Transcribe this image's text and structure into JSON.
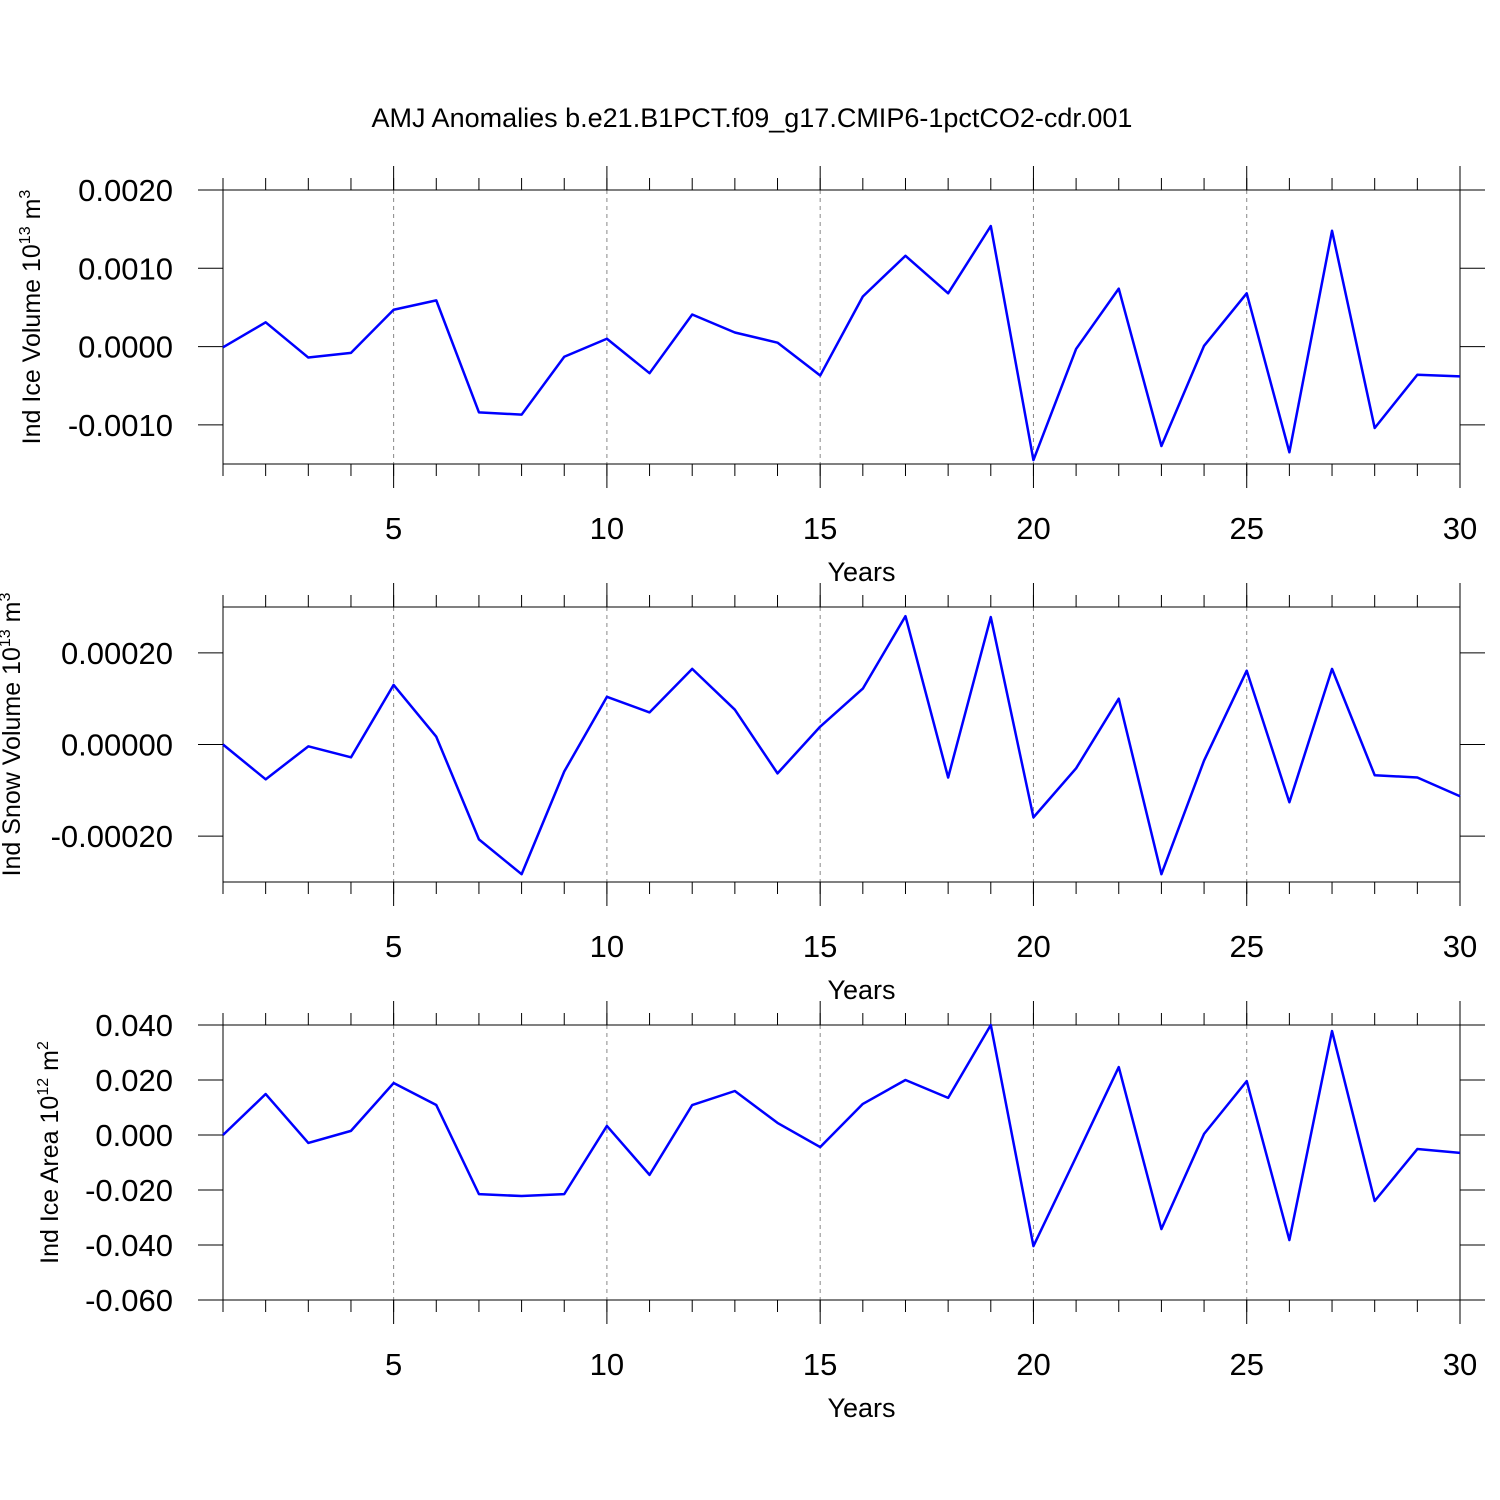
{
  "chart_data": [
    {
      "type": "line",
      "title": "AMJ Anomalies b.e21.B1PCT.f09_g17.CMIP6-1pctCO2-cdr.001",
      "ylabel": {
        "text": "Ind Ice Volume 10",
        "sup": "13",
        "unit": "m",
        "unit_sup": "3"
      },
      "xlabel": "Years",
      "color": "#0000ff",
      "grid": true,
      "x": [
        1,
        2,
        3,
        4,
        5,
        6,
        7,
        8,
        9,
        10,
        11,
        12,
        13,
        14,
        15,
        16,
        17,
        18,
        19,
        20,
        21,
        22,
        23,
        24,
        25,
        26,
        27,
        28,
        29,
        30
      ],
      "values": [
        -1e-05,
        0.00031,
        -0.00014,
        -8e-05,
        0.00047,
        0.00059,
        -0.00084,
        -0.00087,
        -0.00013,
        0.0001,
        -0.00034,
        0.00041,
        0.00018,
        5e-05,
        -0.00037,
        0.00064,
        0.00116,
        0.00068,
        0.00154,
        -0.00145,
        -3e-05,
        0.00074,
        -0.00127,
        1e-05,
        0.00068,
        -0.00135,
        0.00148,
        -0.00104,
        -0.00036,
        -0.00038
      ],
      "xlim": [
        1,
        30
      ],
      "xticks": [
        5,
        10,
        15,
        20,
        25,
        30
      ],
      "ylim": [
        -0.0015,
        0.002
      ],
      "yticks": [
        {
          "value": 0.002,
          "label": "0.0020"
        },
        {
          "value": 0.001,
          "label": "0.0010"
        },
        {
          "value": 0,
          "label": "0.0000"
        },
        {
          "value": -0.001,
          "label": "-0.0010"
        }
      ]
    },
    {
      "type": "line",
      "ylabel": {
        "text": "Ind Snow Volume 10",
        "sup": "13",
        "unit": "m",
        "unit_sup": "3"
      },
      "xlabel": "Years",
      "color": "#0000ff",
      "grid": true,
      "x": [
        1,
        2,
        3,
        4,
        5,
        6,
        7,
        8,
        9,
        10,
        11,
        12,
        13,
        14,
        15,
        16,
        17,
        18,
        19,
        20,
        21,
        22,
        23,
        24,
        25,
        26,
        27,
        28,
        29,
        30
      ],
      "values": [
        0,
        -7.6e-05,
        -4e-06,
        -2.8e-05,
        0.00013,
        1.7e-05,
        -0.000207,
        -0.000283,
        -5.9e-05,
        0.000104,
        7e-05,
        0.000165,
        7.6e-05,
        -6.3e-05,
        3.9e-05,
        0.000122,
        0.00028,
        -7.2e-05,
        0.000278,
        -0.000159,
        -5.2e-05,
        0.0001,
        -0.000283,
        -3.5e-05,
        0.000161,
        -0.000126,
        0.000165,
        -6.7e-05,
        -7.2e-05,
        -0.000113
      ],
      "xlim": [
        1,
        30
      ],
      "xticks": [
        5,
        10,
        15,
        20,
        25,
        30
      ],
      "ylim": [
        -0.0003,
        0.0003
      ],
      "yticks": [
        {
          "value": 0.0002,
          "label": "0.00020"
        },
        {
          "value": 0,
          "label": "0.00000"
        },
        {
          "value": -0.0002,
          "label": "-0.00020"
        }
      ]
    },
    {
      "type": "line",
      "ylabel": {
        "text": "Ind Ice Area 10",
        "sup": "12",
        "unit": "m",
        "unit_sup": "2"
      },
      "xlabel": "Years",
      "color": "#0000ff",
      "grid": true,
      "x": [
        1,
        2,
        3,
        4,
        5,
        6,
        7,
        8,
        9,
        10,
        11,
        12,
        13,
        14,
        15,
        16,
        17,
        18,
        19,
        20,
        21,
        22,
        23,
        24,
        25,
        26,
        27,
        28,
        29,
        30
      ],
      "values": [
        0,
        0.0149,
        -0.0029,
        0.0015,
        0.0189,
        0.0109,
        -0.0215,
        -0.0222,
        -0.0215,
        0.0033,
        -0.0145,
        0.0109,
        0.016,
        0.0044,
        -0.0044,
        0.0113,
        0.02,
        0.0135,
        0.04,
        -0.0404,
        -0.008,
        0.0247,
        -0.0342,
        0.0004,
        0.0196,
        -0.0382,
        0.0378,
        -0.024,
        -0.0051,
        -0.0065
      ],
      "xlim": [
        1,
        30
      ],
      "xticks": [
        5,
        10,
        15,
        20,
        25,
        30
      ],
      "ylim": [
        -0.06,
        0.04
      ],
      "yticks": [
        {
          "value": 0.04,
          "label": "0.040"
        },
        {
          "value": 0.02,
          "label": "0.020"
        },
        {
          "value": 0,
          "label": "0.000"
        },
        {
          "value": -0.02,
          "label": "-0.020"
        },
        {
          "value": -0.04,
          "label": "-0.040"
        },
        {
          "value": -0.06,
          "label": "-0.060"
        }
      ]
    }
  ]
}
